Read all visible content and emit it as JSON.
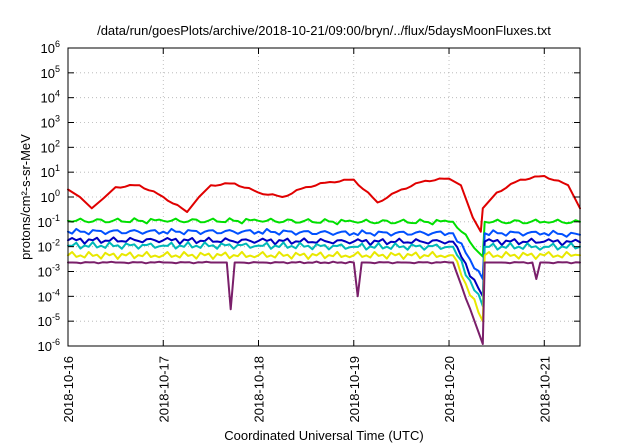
{
  "chart_data": {
    "type": "line",
    "title": "/data/run/goesPlots/archive/2018-10-21/09:00/bryn/../flux/5daysMoonFluxes.txt",
    "xlabel": "Coordinated Universal Time (UTC)",
    "ylabel": "protons/cm²-s-sr-MeV",
    "x_scale": "time",
    "y_scale": "log",
    "xlim": [
      "2018-10-16T00:00",
      "2018-10-21T09:00"
    ],
    "ylim": [
      1e-06,
      1000000.0
    ],
    "grid": true,
    "legend": "none",
    "x_ticks": [
      {
        "label": "2018-10-16",
        "value": "2018-10-16T00:00"
      },
      {
        "label": "2018-10-17",
        "value": "2018-10-17T00:00"
      },
      {
        "label": "2018-10-18",
        "value": "2018-10-18T00:00"
      },
      {
        "label": "2018-10-19",
        "value": "2018-10-19T00:00"
      },
      {
        "label": "2018-10-20",
        "value": "2018-10-20T00:00"
      },
      {
        "label": "2018-10-21",
        "value": "2018-10-21T00:00"
      }
    ],
    "y_ticks": [
      {
        "base": "10",
        "exp": "-6"
      },
      {
        "base": "10",
        "exp": "-5"
      },
      {
        "base": "10",
        "exp": "-4"
      },
      {
        "base": "10",
        "exp": "-3"
      },
      {
        "base": "10",
        "exp": "-2"
      },
      {
        "base": "10",
        "exp": "-1"
      },
      {
        "base": "10",
        "exp": "0"
      },
      {
        "base": "10",
        "exp": "1"
      },
      {
        "base": "10",
        "exp": "2"
      },
      {
        "base": "10",
        "exp": "3"
      },
      {
        "base": "10",
        "exp": "4"
      },
      {
        "base": "10",
        "exp": "5"
      },
      {
        "base": "10",
        "exp": "6"
      }
    ],
    "series": [
      {
        "color": "#e00000",
        "x": [
          "2018-10-16T00:00",
          "2018-10-16T03:00",
          "2018-10-16T06:00",
          "2018-10-16T09:00",
          "2018-10-16T12:00",
          "2018-10-16T18:00",
          "2018-10-17T00:00",
          "2018-10-17T06:00",
          "2018-10-17T09:00",
          "2018-10-17T12:00",
          "2018-10-17T18:00",
          "2018-10-18T00:00",
          "2018-10-18T06:00",
          "2018-10-18T12:00",
          "2018-10-18T18:00",
          "2018-10-19T00:00",
          "2018-10-19T06:00",
          "2018-10-19T12:00",
          "2018-10-19T18:00",
          "2018-10-20T00:00",
          "2018-10-20T03:00",
          "2018-10-20T06:00",
          "2018-10-20T08:00",
          "2018-10-20T08:30",
          "2018-10-20T12:00",
          "2018-10-20T18:00",
          "2018-10-21T00:00",
          "2018-10-21T06:00",
          "2018-10-21T09:00"
        ],
        "y": [
          2.0,
          1.0,
          0.35,
          0.9,
          2.5,
          3.0,
          1.0,
          0.25,
          1.0,
          3.0,
          3.5,
          1.5,
          1.0,
          2.5,
          4.0,
          5.0,
          0.6,
          2.0,
          4.5,
          5.5,
          3.0,
          0.15,
          0.04,
          0.35,
          1.5,
          5.0,
          7.0,
          3.0,
          0.35
        ]
      },
      {
        "color": "#00e000",
        "x": [
          "2018-10-16T00:00",
          "2018-10-17T00:00",
          "2018-10-18T00:00",
          "2018-10-19T00:00",
          "2018-10-20T00:00",
          "2018-10-20T01:00",
          "2018-10-20T08:30",
          "2018-10-20T09:00",
          "2018-10-21T00:00",
          "2018-10-21T09:00"
        ],
        "y": [
          0.11,
          0.11,
          0.11,
          0.1,
          0.1,
          0.1,
          0.004,
          0.1,
          0.1,
          0.1
        ]
      },
      {
        "color": "#0050ff",
        "x": [
          "2018-10-16T00:00",
          "2018-10-17T00:00",
          "2018-10-18T00:00",
          "2018-10-19T00:00",
          "2018-10-20T00:00",
          "2018-10-20T01:00",
          "2018-10-20T08:30",
          "2018-10-20T09:00",
          "2018-10-21T00:00",
          "2018-10-21T09:00"
        ],
        "y": [
          0.04,
          0.04,
          0.04,
          0.035,
          0.035,
          0.035,
          0.0005,
          0.035,
          0.035,
          0.03
        ]
      },
      {
        "color": "#0000c0",
        "x": [
          "2018-10-16T00:00",
          "2018-10-17T00:00",
          "2018-10-18T00:00",
          "2018-10-19T00:00",
          "2018-10-20T00:00",
          "2018-10-20T01:00",
          "2018-10-20T08:30",
          "2018-10-20T09:00",
          "2018-10-21T00:00",
          "2018-10-21T09:00"
        ],
        "y": [
          0.018,
          0.018,
          0.017,
          0.016,
          0.016,
          0.016,
          0.0001,
          0.016,
          0.016,
          0.015
        ]
      },
      {
        "color": "#00b8b8",
        "x": [
          "2018-10-16T00:00",
          "2018-10-17T00:00",
          "2018-10-18T00:00",
          "2018-10-19T00:00",
          "2018-10-20T00:00",
          "2018-10-20T01:00",
          "2018-10-20T08:30",
          "2018-10-20T09:00",
          "2018-10-21T00:00",
          "2018-10-21T09:00"
        ],
        "y": [
          0.011,
          0.011,
          0.011,
          0.01,
          0.01,
          0.01,
          4e-05,
          0.01,
          0.01,
          0.01
        ]
      },
      {
        "color": "#e8e800",
        "x": [
          "2018-10-16T00:00",
          "2018-10-17T00:00",
          "2018-10-18T00:00",
          "2018-10-19T00:00",
          "2018-10-20T00:00",
          "2018-10-20T01:00",
          "2018-10-20T08:30",
          "2018-10-20T09:00",
          "2018-10-21T00:00",
          "2018-10-21T09:00"
        ],
        "y": [
          0.0045,
          0.0045,
          0.0045,
          0.0045,
          0.0045,
          0.0045,
          1e-05,
          0.0045,
          0.0045,
          0.0045
        ]
      },
      {
        "color": "#7a1f6a",
        "x": [
          "2018-10-16T00:00",
          "2018-10-16T12:00",
          "2018-10-17T00:00",
          "2018-10-17T12:00",
          "2018-10-17T16:00",
          "2018-10-17T17:00",
          "2018-10-17T18:00",
          "2018-10-18T00:00",
          "2018-10-19T00:00",
          "2018-10-19T01:00",
          "2018-10-19T02:00",
          "2018-10-19T12:00",
          "2018-10-20T00:00",
          "2018-10-20T01:00",
          "2018-10-20T08:30",
          "2018-10-20T09:00",
          "2018-10-20T12:00",
          "2018-10-20T21:00",
          "2018-10-20T22:00",
          "2018-10-20T23:00",
          "2018-10-21T09:00"
        ],
        "y": [
          0.0023,
          0.0023,
          0.0023,
          0.0023,
          0.0023,
          3e-05,
          0.0023,
          0.0023,
          0.0023,
          0.0001,
          0.0023,
          0.0023,
          0.0023,
          0.0023,
          1.2e-06,
          0.0023,
          0.0023,
          0.0023,
          0.0005,
          0.0023,
          0.0023
        ]
      }
    ]
  }
}
